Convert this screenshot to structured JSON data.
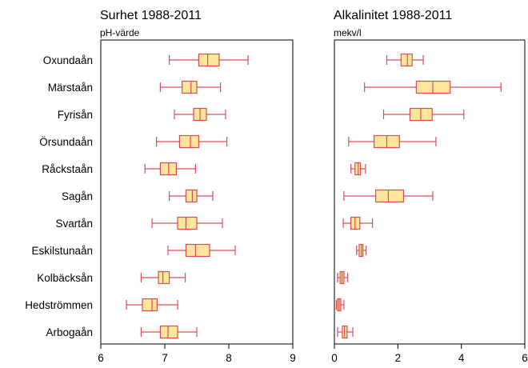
{
  "rivers": [
    "Oxundaån",
    "Märstaån",
    "Fyrisån",
    "Örsundaån",
    "Råckstaån",
    "Sagån",
    "Svartån",
    "Eskilstunaån",
    "Kolbäcksån",
    "Hedströmmen",
    "Arbogaån"
  ],
  "colors": {
    "box_fill": "#ffe69a",
    "box_stroke": "#e04a55",
    "frame": "#000000"
  },
  "chart_data": [
    {
      "type": "boxplot",
      "orientation": "horizontal",
      "title": "Surhet 1988-2011",
      "subtitle": "pH-värde",
      "xlim": [
        6,
        9
      ],
      "xticks": [
        "6",
        "7",
        "8",
        "9"
      ],
      "xtick_values": [
        6,
        7,
        8,
        9
      ],
      "categories": [
        "Oxundaån",
        "Märstaån",
        "Fyrisån",
        "Örsundaån",
        "Råckstaån",
        "Sagån",
        "Svartån",
        "Eskilstunaån",
        "Kolbäcksån",
        "Hedströmmen",
        "Arbogaån"
      ],
      "boxes": [
        {
          "min": 7.07,
          "q1": 7.53,
          "median": 7.67,
          "q3": 7.85,
          "max": 8.3
        },
        {
          "min": 6.93,
          "q1": 7.27,
          "median": 7.41,
          "q3": 7.5,
          "max": 7.87
        },
        {
          "min": 7.15,
          "q1": 7.45,
          "median": 7.55,
          "q3": 7.65,
          "max": 7.95
        },
        {
          "min": 6.87,
          "q1": 7.23,
          "median": 7.4,
          "q3": 7.53,
          "max": 7.97
        },
        {
          "min": 6.69,
          "q1": 6.93,
          "median": 7.06,
          "q3": 7.18,
          "max": 7.48
        },
        {
          "min": 7.07,
          "q1": 7.33,
          "median": 7.43,
          "q3": 7.5,
          "max": 7.75
        },
        {
          "min": 6.8,
          "q1": 7.2,
          "median": 7.33,
          "q3": 7.5,
          "max": 7.9
        },
        {
          "min": 7.05,
          "q1": 7.33,
          "median": 7.48,
          "q3": 7.7,
          "max": 8.1
        },
        {
          "min": 6.63,
          "q1": 6.9,
          "median": 6.97,
          "q3": 7.07,
          "max": 7.32
        },
        {
          "min": 6.4,
          "q1": 6.65,
          "median": 6.8,
          "q3": 6.88,
          "max": 7.2
        },
        {
          "min": 6.63,
          "q1": 6.93,
          "median": 7.05,
          "q3": 7.2,
          "max": 7.5
        }
      ]
    },
    {
      "type": "boxplot",
      "orientation": "horizontal",
      "title": "Alkalinitet 1988-2011",
      "subtitle": "mekv/l",
      "xlim": [
        0,
        6
      ],
      "xticks": [
        "0",
        "2",
        "4",
        "6"
      ],
      "xtick_values": [
        0,
        2,
        4,
        6
      ],
      "categories": [
        "Oxundaån",
        "Märstaån",
        "Fyrisån",
        "Örsundaån",
        "Råckstaån",
        "Sagån",
        "Svartån",
        "Eskilstunaån",
        "Kolbäcksån",
        "Hedströmmen",
        "Arbogaån"
      ],
      "boxes": [
        {
          "min": 1.65,
          "q1": 2.1,
          "median": 2.3,
          "q3": 2.45,
          "max": 2.8
        },
        {
          "min": 0.95,
          "q1": 2.58,
          "median": 3.1,
          "q3": 3.65,
          "max": 5.25
        },
        {
          "min": 1.55,
          "q1": 2.38,
          "median": 2.72,
          "q3": 3.08,
          "max": 4.08
        },
        {
          "min": 0.45,
          "q1": 1.25,
          "median": 1.65,
          "q3": 2.05,
          "max": 3.2
        },
        {
          "min": 0.52,
          "q1": 0.65,
          "median": 0.75,
          "q3": 0.82,
          "max": 0.98
        },
        {
          "min": 0.3,
          "q1": 1.3,
          "median": 1.7,
          "q3": 2.18,
          "max": 3.1
        },
        {
          "min": 0.28,
          "q1": 0.52,
          "median": 0.65,
          "q3": 0.8,
          "max": 1.2
        },
        {
          "min": 0.7,
          "q1": 0.78,
          "median": 0.85,
          "q3": 0.9,
          "max": 1.0
        },
        {
          "min": 0.1,
          "q1": 0.18,
          "median": 0.24,
          "q3": 0.3,
          "max": 0.42
        },
        {
          "min": 0.06,
          "q1": 0.1,
          "median": 0.15,
          "q3": 0.2,
          "max": 0.3
        },
        {
          "min": 0.1,
          "q1": 0.25,
          "median": 0.32,
          "q3": 0.4,
          "max": 0.58
        }
      ]
    }
  ]
}
